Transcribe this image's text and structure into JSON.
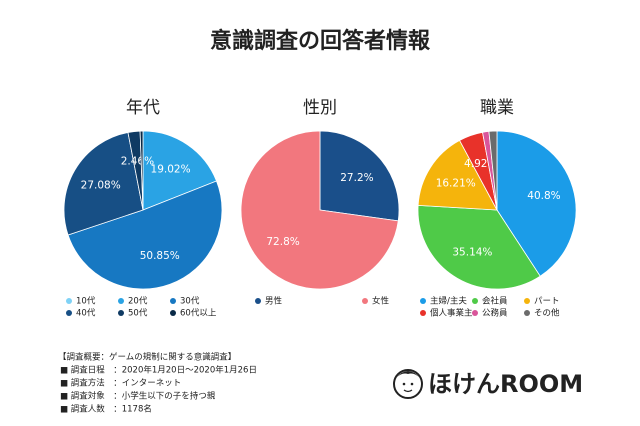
{
  "title": "意識調査の回答者情報",
  "chart_data": [
    {
      "type": "pie",
      "title": "年代",
      "categories": [
        "10代",
        "20代",
        "30代",
        "40代",
        "50代",
        "60代以上"
      ],
      "values": [
        0,
        19.02,
        50.85,
        27.08,
        2.46,
        0.59
      ],
      "value_labels": [
        null,
        "19.02%",
        "50.85%",
        "27.08%",
        "2.46%",
        null
      ],
      "colors": [
        "#7fd2f6",
        "#2aa3e4",
        "#1778c2",
        "#174f85",
        "#0f3a63",
        "#0a2a47"
      ]
    },
    {
      "type": "pie",
      "title": "性別",
      "categories": [
        "男性",
        "女性"
      ],
      "values": [
        27.2,
        72.8
      ],
      "value_labels": [
        "27.2%",
        "72.8%"
      ],
      "colors": [
        "#1a4f8a",
        "#f2777e"
      ]
    },
    {
      "type": "pie",
      "title": "職業",
      "categories": [
        "主婦/主夫",
        "会社員",
        "パート",
        "個人事業主",
        "公務員",
        "その他"
      ],
      "values": [
        40.8,
        35.14,
        16.21,
        4.92,
        1.3,
        1.63
      ],
      "value_labels": [
        "40.8%",
        "35.14%",
        "16.21%",
        "4.92%",
        null,
        null
      ],
      "colors": [
        "#1b9ce8",
        "#4fca48",
        "#f5b40c",
        "#e8322a",
        "#d9559a",
        "#6b6b6b"
      ]
    }
  ],
  "survey_info": [
    "【調査概要：ゲームの規制に関する意識調査】",
    "■ 調査日程　：2020年1月20日〜2020年1月26日",
    "■ 調査方法　：インターネット",
    "■ 調査対象　：小学生以下の子を持つ親",
    "■ 調査人数　：1178名"
  ],
  "logo": "ほけんROOM"
}
